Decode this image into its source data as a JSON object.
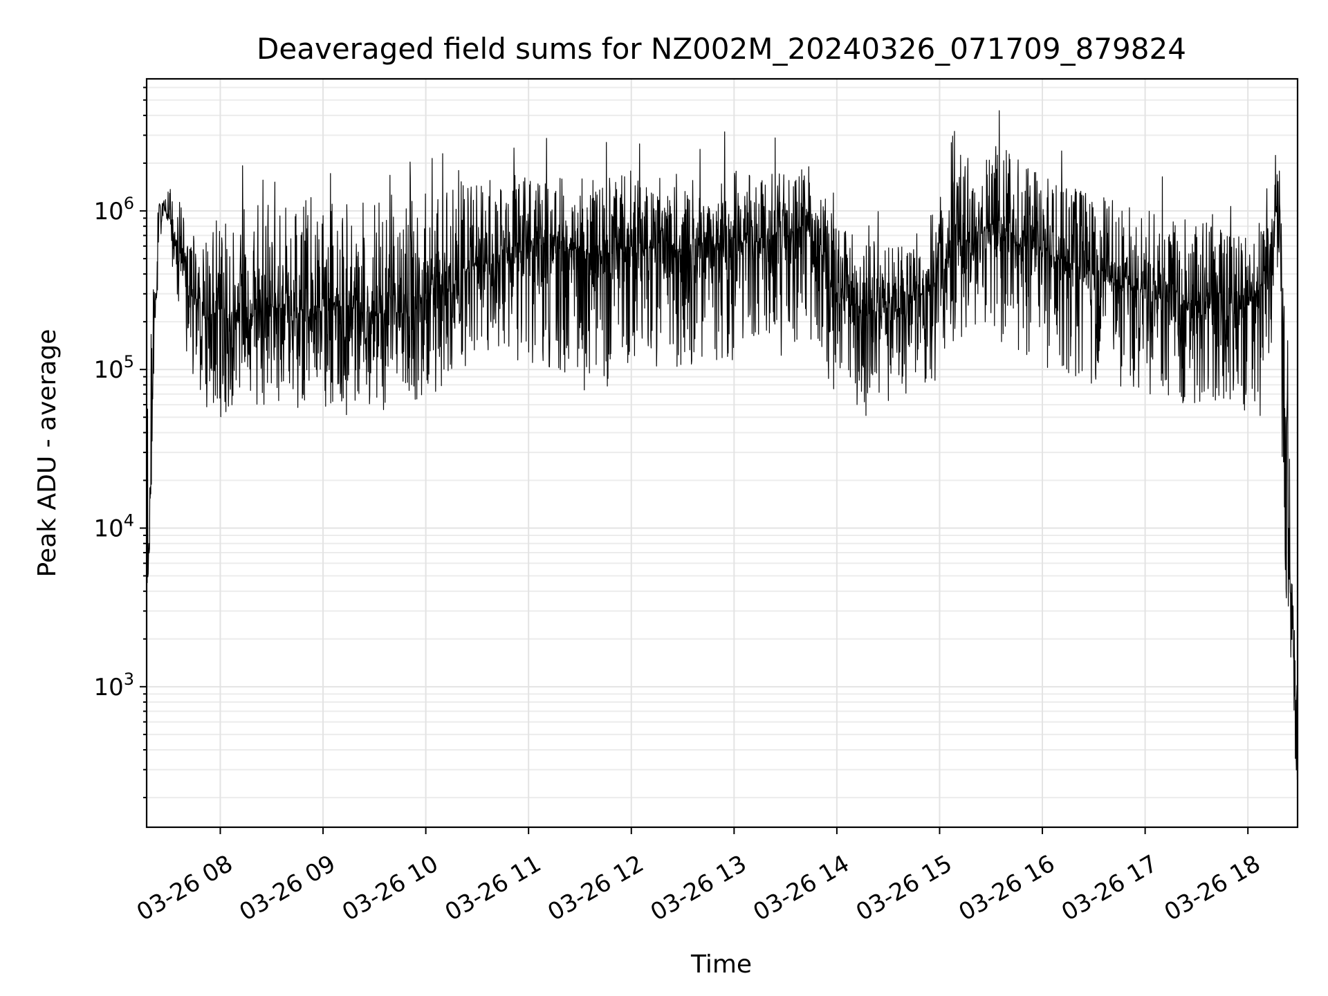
{
  "chart_data": {
    "type": "line",
    "title": "Deaveraged field sums for NZ002M_20240326_071709_879824",
    "xlabel": "Time",
    "ylabel": "Peak ADU - average",
    "yscale": "log",
    "ylim": [
      130,
      6800000
    ],
    "xlim": [
      "2024-03-26 07:17",
      "2024-03-26 18:29"
    ],
    "grid": "both (major and minor)",
    "legend": "none",
    "line_color": "#000000",
    "x_tick_labels": [
      "03-26 08",
      "03-26 09",
      "03-26 10",
      "03-26 11",
      "03-26 12",
      "03-26 13",
      "03-26 14",
      "03-26 15",
      "03-26 16",
      "03-26 17",
      "03-26 18"
    ],
    "x_ticks": [
      "2024-03-26 08:00",
      "2024-03-26 09:00",
      "2024-03-26 10:00",
      "2024-03-26 11:00",
      "2024-03-26 12:00",
      "2024-03-26 13:00",
      "2024-03-26 14:00",
      "2024-03-26 15:00",
      "2024-03-26 16:00",
      "2024-03-26 17:00",
      "2024-03-26 18:00"
    ],
    "y_tick_labels": [
      {
        "base": "10",
        "exp": "3",
        "value": 1000
      },
      {
        "base": "10",
        "exp": "4",
        "value": 10000
      },
      {
        "base": "10",
        "exp": "5",
        "value": 100000
      },
      {
        "base": "10",
        "exp": "6",
        "value": 1000000
      }
    ],
    "series": [
      {
        "x": [
          "07:17",
          "07:18",
          "07:19",
          "07:21",
          "07:24",
          "07:27",
          "07:30",
          "07:33",
          "07:36",
          "07:40",
          "07:44",
          "07:48",
          "07:52",
          "07:56",
          "08:00",
          "08:10",
          "08:20",
          "08:30",
          "08:40",
          "08:50",
          "09:00",
          "09:10",
          "09:20",
          "09:30",
          "09:40",
          "09:50",
          "10:00",
          "10:10",
          "10:20",
          "10:30",
          "10:40",
          "10:50",
          "11:00",
          "11:10",
          "11:20",
          "11:30",
          "11:40",
          "11:50",
          "12:00",
          "12:10",
          "12:20",
          "12:30",
          "12:40",
          "12:50",
          "13:00",
          "13:10",
          "13:20",
          "13:30",
          "13:40",
          "13:50",
          "14:00",
          "14:10",
          "14:20",
          "14:30",
          "14:40",
          "14:50",
          "15:00",
          "15:10",
          "15:20",
          "15:30",
          "15:40",
          "15:50",
          "16:00",
          "16:10",
          "16:20",
          "16:30",
          "16:40",
          "16:50",
          "17:00",
          "17:10",
          "17:20",
          "17:30",
          "17:40",
          "17:50",
          "18:00",
          "18:05",
          "18:10",
          "18:15",
          "18:18",
          "18:20",
          "18:22",
          "18:24",
          "18:26",
          "18:28",
          "18:29"
        ],
        "y": [
          4000,
          6000,
          15000,
          120000,
          700000,
          1100000,
          900000,
          700000,
          600000,
          500000,
          300000,
          250000,
          200000,
          220000,
          250000,
          200000,
          220000,
          250000,
          230000,
          240000,
          250000,
          260000,
          240000,
          230000,
          220000,
          240000,
          300000,
          350000,
          400000,
          450000,
          500000,
          550000,
          600000,
          600000,
          550000,
          580000,
          500000,
          550000,
          600000,
          600000,
          650000,
          550000,
          600000,
          620000,
          600000,
          650000,
          700000,
          700000,
          800000,
          600000,
          300000,
          250000,
          220000,
          230000,
          250000,
          300000,
          400000,
          600000,
          700000,
          800000,
          650000,
          600000,
          550000,
          500000,
          450000,
          400000,
          350000,
          330000,
          320000,
          300000,
          280000,
          250000,
          240000,
          230000,
          250000,
          300000,
          350000,
          700000,
          1500000,
          300000,
          50000,
          10000,
          2000,
          800,
          400
        ],
        "upper_envelope": [
          40000,
          60000,
          100000,
          600000,
          1300000,
          1300000,
          1400000,
          1300000,
          1200000,
          1100000,
          1000000,
          900000,
          900000,
          1000000,
          1000000,
          1100000,
          1200000,
          1300000,
          1200000,
          1200000,
          1300000,
          1200000,
          1200000,
          1100000,
          1100000,
          1300000,
          1300000,
          1500000,
          1700000,
          1800000,
          1800000,
          1800000,
          1800000,
          1700000,
          1600000,
          1700000,
          1600000,
          1700000,
          1700000,
          1800000,
          1900000,
          1700000,
          1700000,
          1800000,
          1800000,
          1800000,
          1800000,
          1700000,
          1800000,
          1500000,
          800000,
          700000,
          650000,
          600000,
          650000,
          900000,
          1300000,
          2300000,
          2600000,
          2800000,
          2400000,
          2000000,
          1800000,
          1500000,
          1400000,
          1300000,
          1200000,
          1100000,
          1100000,
          1000000,
          900000,
          900000,
          800000,
          700000,
          700000,
          800000,
          1000000,
          2000000,
          3000000,
          1000000,
          200000,
          50000,
          5000,
          2000,
          1000
        ],
        "lower_envelope": [
          4000,
          5000,
          8000,
          60000,
          500000,
          900000,
          500000,
          350000,
          200000,
          120000,
          90000,
          70000,
          55000,
          50000,
          48000,
          50000,
          55000,
          60000,
          55000,
          55000,
          58000,
          60000,
          60000,
          58000,
          60000,
          60000,
          70000,
          80000,
          100000,
          110000,
          120000,
          110000,
          110000,
          100000,
          90000,
          80000,
          80000,
          90000,
          100000,
          100000,
          110000,
          100000,
          100000,
          110000,
          120000,
          130000,
          140000,
          150000,
          150000,
          130000,
          60000,
          60000,
          60000,
          60000,
          60000,
          70000,
          90000,
          130000,
          170000,
          200000,
          150000,
          120000,
          100000,
          90000,
          80000,
          80000,
          75000,
          70000,
          70000,
          65000,
          60000,
          60000,
          60000,
          55000,
          55000,
          60000,
          70000,
          200000,
          500000,
          20000,
          5000,
          1000,
          600,
          300,
          250
        ]
      }
    ]
  }
}
